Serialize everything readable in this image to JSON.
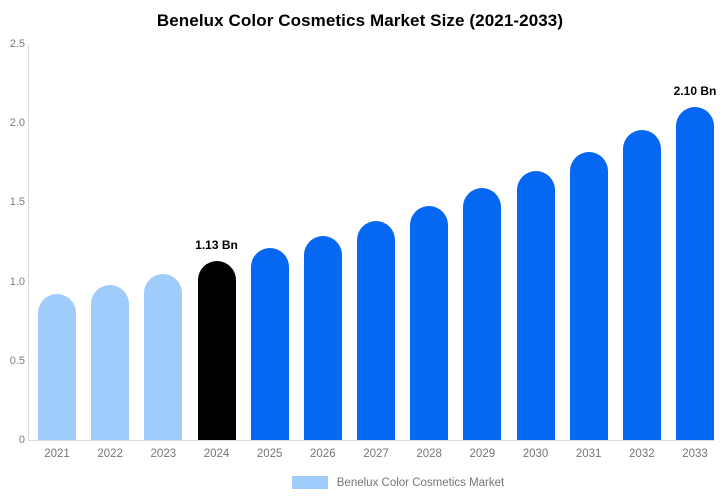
{
  "title": "Benelux Color Cosmetics Market Size (2021-2033)",
  "chart_data": {
    "type": "bar",
    "title": "Benelux Color Cosmetics Market Size (2021-2033)",
    "categories": [
      "2021",
      "2022",
      "2023",
      "2024",
      "2025",
      "2026",
      "2027",
      "2028",
      "2029",
      "2030",
      "2031",
      "2032",
      "2033"
    ],
    "values": [
      0.92,
      0.98,
      1.05,
      1.13,
      1.21,
      1.29,
      1.38,
      1.48,
      1.59,
      1.7,
      1.82,
      1.96,
      2.1
    ],
    "annotations": [
      {
        "category": "2024",
        "text": "1.13 Bn"
      },
      {
        "category": "2033",
        "text": "2.10 Bn"
      }
    ],
    "ylim": [
      0,
      2.5
    ],
    "ytick_values": [
      0,
      0.5,
      1.0,
      1.5,
      2.0,
      2.5
    ],
    "ytick_labels": [
      "0",
      "0.5",
      "1.0",
      "1.5",
      "2.0",
      "2.5"
    ],
    "xlabel": "",
    "ylabel": "",
    "grid": false,
    "legend": {
      "position": "bottom",
      "label": "Benelux Color Cosmetics Market",
      "swatch_color": "#9fccfb"
    },
    "bar_colors": [
      "#9fccfb",
      "#9fccfb",
      "#9fccfb",
      "#000000",
      "#0667f2",
      "#0667f2",
      "#0667f2",
      "#0667f2",
      "#0667f2",
      "#0667f2",
      "#0667f2",
      "#0667f2",
      "#0667f2"
    ],
    "colors": {
      "light_blue_bar": "#9fccfb",
      "highlight_bar": "#000000",
      "blue_bar": "#0667f2",
      "axis_line": "#d9d9d9",
      "ytick_text": "#7c7c7c",
      "xtick_text": "#757575",
      "annotation_text": "#000000",
      "title_text": "#000000"
    }
  }
}
